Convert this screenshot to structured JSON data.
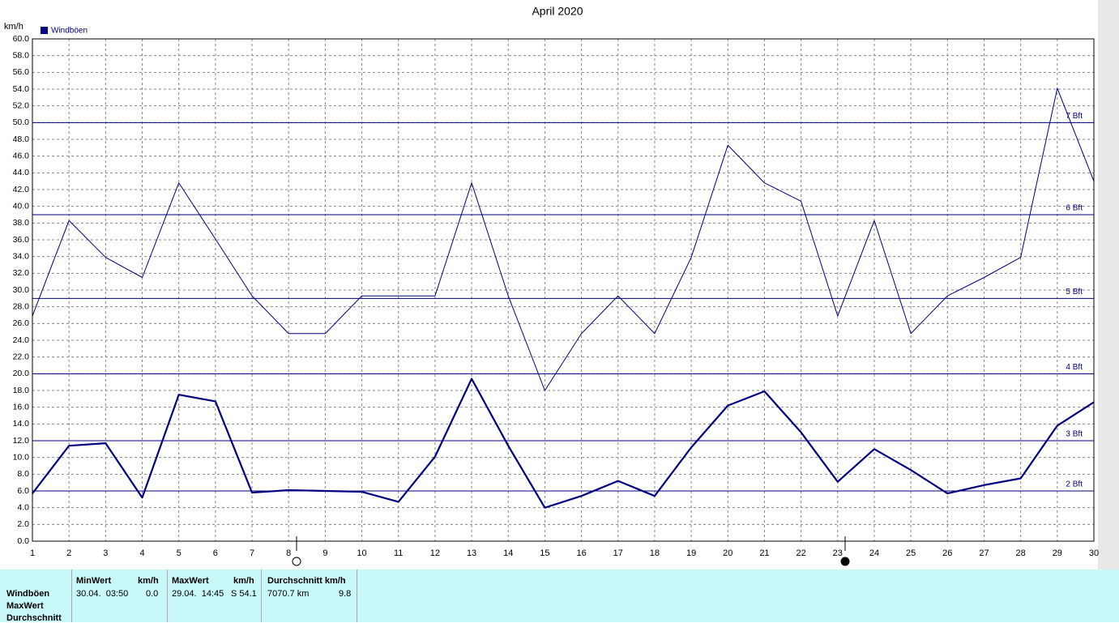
{
  "chart_data": {
    "type": "line",
    "title": "April 2020",
    "y_label": "km/h",
    "x": [
      1,
      2,
      3,
      4,
      5,
      6,
      7,
      8,
      9,
      10,
      11,
      12,
      13,
      14,
      15,
      16,
      17,
      18,
      19,
      20,
      21,
      22,
      23,
      24,
      25,
      26,
      27,
      28,
      29,
      30
    ],
    "xlim": [
      1,
      30
    ],
    "xticks": [
      1,
      2,
      3,
      4,
      5,
      6,
      7,
      8,
      9,
      10,
      11,
      12,
      13,
      14,
      15,
      16,
      17,
      18,
      19,
      20,
      21,
      22,
      23,
      24,
      25,
      26,
      27,
      28,
      29,
      30
    ],
    "ylim": [
      0,
      60
    ],
    "yticks": [
      {
        "value": 0,
        "label": "0.0"
      },
      {
        "value": 2,
        "label": "2.0"
      },
      {
        "value": 4,
        "label": "4.0"
      },
      {
        "value": 6,
        "label": "6.0"
      },
      {
        "value": 8,
        "label": "8.0"
      },
      {
        "value": 10,
        "label": "10.0"
      },
      {
        "value": 12,
        "label": "12.0"
      },
      {
        "value": 14,
        "label": "14.0"
      },
      {
        "value": 16,
        "label": "16.0"
      },
      {
        "value": 18,
        "label": "18.0"
      },
      {
        "value": 20,
        "label": "20.0"
      },
      {
        "value": 22,
        "label": "22.0"
      },
      {
        "value": 24,
        "label": "24.0"
      },
      {
        "value": 26,
        "label": "26.0"
      },
      {
        "value": 28,
        "label": "28.0"
      },
      {
        "value": 30,
        "label": "30.0"
      },
      {
        "value": 32,
        "label": "32.0"
      },
      {
        "value": 34,
        "label": "34.0"
      },
      {
        "value": 36,
        "label": "36.0"
      },
      {
        "value": 38,
        "label": "38.0"
      },
      {
        "value": 40,
        "label": "40.0"
      },
      {
        "value": 42,
        "label": "42.0"
      },
      {
        "value": 44,
        "label": "44.0"
      },
      {
        "value": 46,
        "label": "46.0"
      },
      {
        "value": 48,
        "label": "48.0"
      },
      {
        "value": 50,
        "label": "50.0"
      },
      {
        "value": 52,
        "label": "52.0"
      },
      {
        "value": 54,
        "label": "54.0"
      },
      {
        "value": 56,
        "label": "56.0"
      },
      {
        "value": 58,
        "label": "58.0"
      },
      {
        "value": 60,
        "label": "60.0"
      }
    ],
    "grid": true,
    "series": [
      {
        "name": "Windböen",
        "color": "#000080",
        "line_width": 1,
        "values": [
          26.9,
          38.3,
          33.9,
          31.5,
          42.8,
          36.1,
          29.3,
          24.8,
          24.8,
          29.3,
          29.3,
          29.3,
          42.8,
          29.3,
          18.0,
          24.8,
          29.3,
          24.8,
          33.9,
          47.3,
          42.8,
          40.6,
          26.9,
          38.3,
          24.8,
          29.3,
          31.5,
          33.9,
          54.1,
          43.0
        ]
      },
      {
        "color": "#000080",
        "line_width": 2.2,
        "values": [
          5.7,
          11.4,
          11.7,
          5.2,
          17.5,
          16.7,
          5.8,
          6.1,
          6.0,
          5.9,
          4.7,
          10.1,
          19.4,
          11.4,
          4.0,
          5.4,
          7.2,
          5.4,
          11.2,
          16.2,
          17.9,
          13.0,
          7.1,
          11.0,
          8.5,
          5.7,
          6.7,
          7.5,
          13.8,
          16.6
        ]
      }
    ],
    "reference_lines": [
      {
        "value": 6,
        "label": "2 Bft"
      },
      {
        "value": 12,
        "label": "3 Bft"
      },
      {
        "value": 20,
        "label": "4 Bft"
      },
      {
        "value": 29,
        "label": "5 Bft"
      },
      {
        "value": 39,
        "label": "6 Bft"
      },
      {
        "value": 50,
        "label": "7 Bft"
      }
    ],
    "reference_color": "#000080"
  },
  "stats_table": {
    "row_labels": [
      "Windböen",
      "MaxWert",
      "Durchschnitt"
    ],
    "columns": [
      {
        "header": "MinWert",
        "unit": "km/h",
        "cells": [
          "30.04.  03:50",
          "0.0"
        ]
      },
      {
        "header": "MaxWert",
        "unit": "km/h",
        "cells": [
          "29.04.  14:45",
          "S 54.1"
        ]
      },
      {
        "header": "Durchschnitt km/h",
        "cells": [
          "7070.7 km",
          "9.8"
        ]
      }
    ]
  }
}
